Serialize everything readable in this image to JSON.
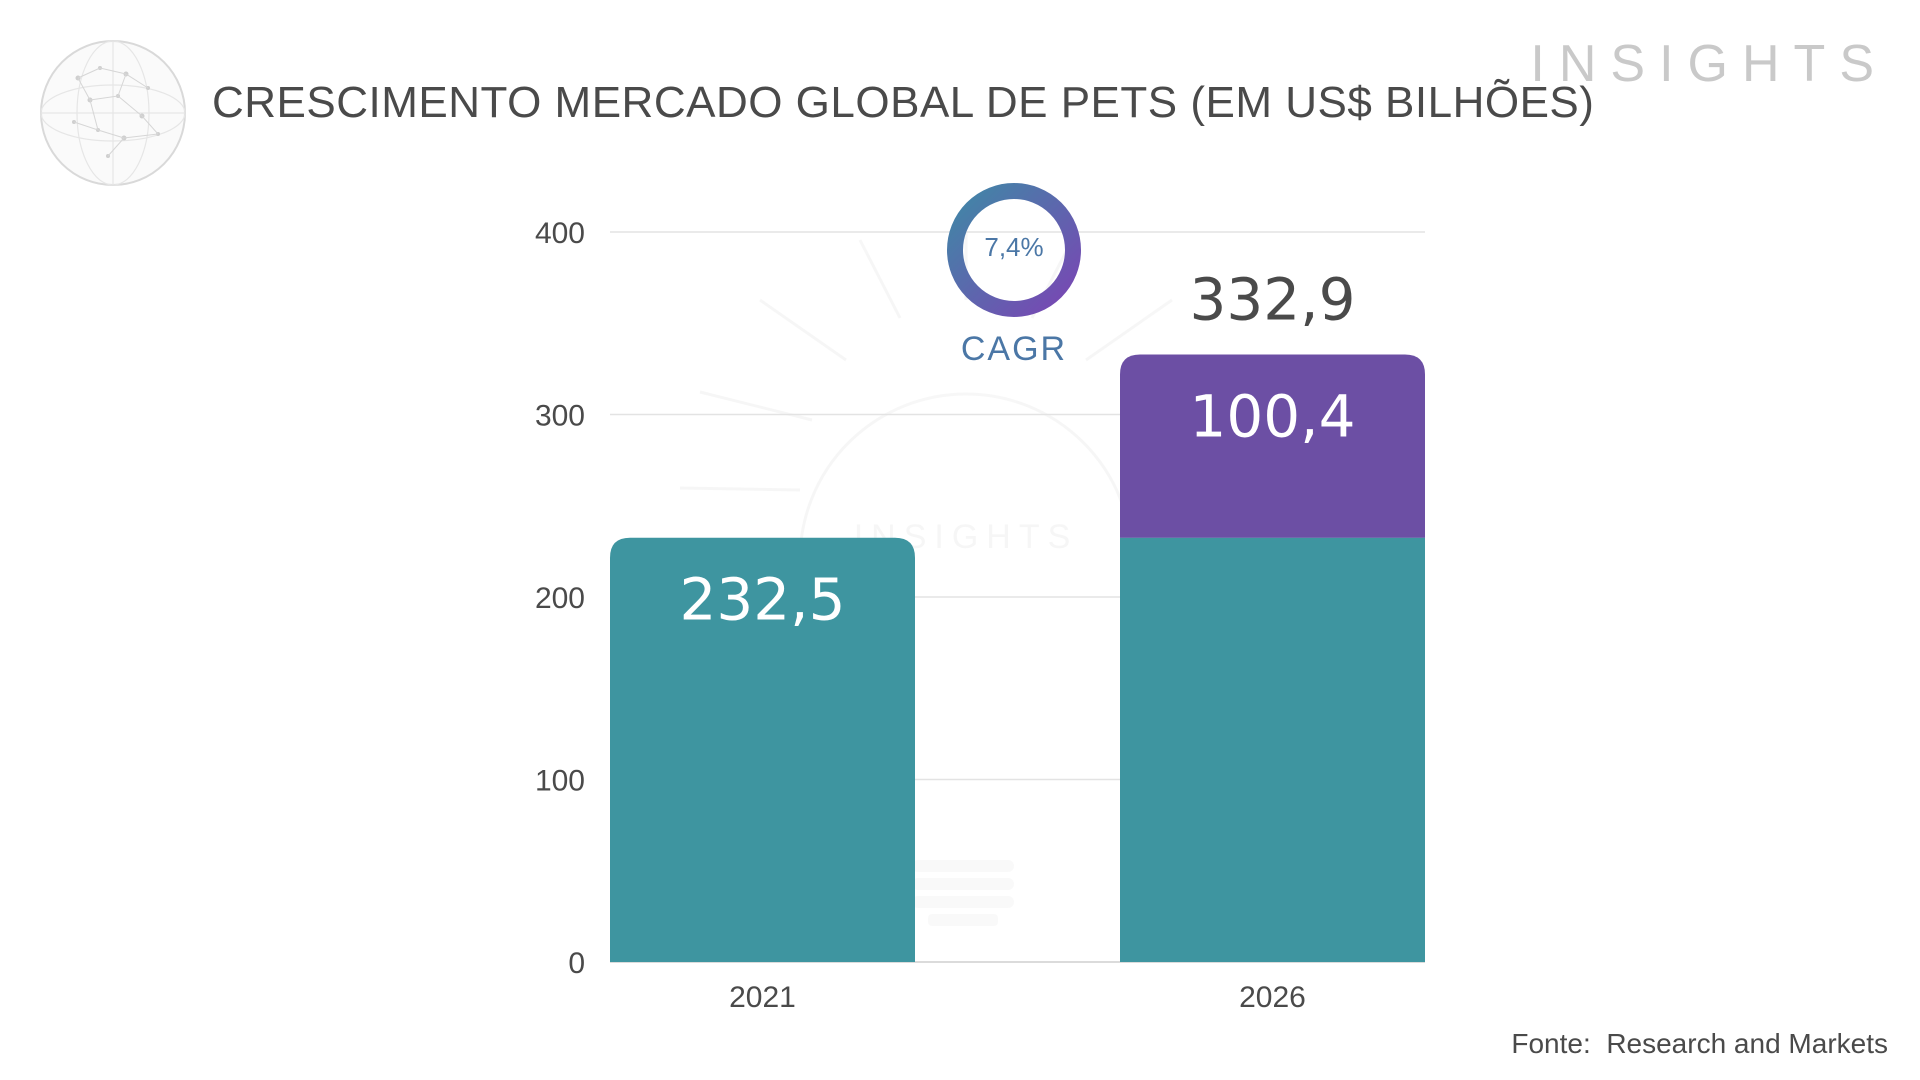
{
  "header": {
    "title": "CRESCIMENTO MERCADO GLOBAL DE PETS (EM US$ BILHÕES)",
    "brand": "INSIGHTS"
  },
  "watermark": {
    "text": "INSIGHTS"
  },
  "source": "Fonte:  Research and Markets",
  "cagr": {
    "value": "7,4%",
    "label": "CAGR"
  },
  "colors": {
    "base": "#3e95a0",
    "growth": "#6c4fa4",
    "grid": "#e3e3e3",
    "axis_text": "#4a4a4a",
    "cagr_ring_start": "#3f88a6",
    "cagr_ring_end": "#7a45b4"
  },
  "chart_data": {
    "type": "bar",
    "stacked": true,
    "title": "CRESCIMENTO MERCADO GLOBAL DE PETS (EM US$ BILHÕES)",
    "categories": [
      "2021",
      "2026"
    ],
    "series": [
      {
        "values": [
          232.5,
          232.5
        ]
      },
      {
        "values": [
          0,
          100.4
        ]
      }
    ],
    "data_labels": [
      {
        "category": "2021",
        "series": 0,
        "text": "232,5"
      },
      {
        "category": "2026",
        "series": 1,
        "text": "100,4"
      },
      {
        "category": "2026",
        "total": true,
        "text": "332,9"
      }
    ],
    "totals": [
      232.5,
      332.9
    ],
    "ylim": [
      0,
      400
    ],
    "yticks": [
      0,
      100,
      200,
      300,
      400
    ],
    "grid": true,
    "legend": "none"
  }
}
